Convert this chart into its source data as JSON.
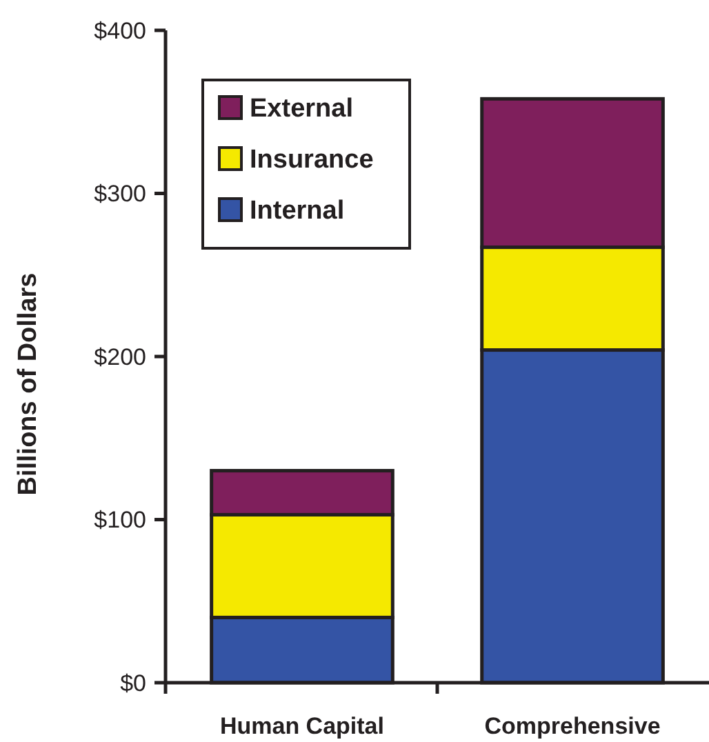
{
  "chart_data": {
    "type": "bar",
    "stacked": true,
    "ylabel": "Billions of Dollars",
    "categories": [
      "Human Capital",
      "Comprehensive"
    ],
    "series": [
      {
        "name": "Internal",
        "color": "#3454a5",
        "values": [
          40,
          204
        ]
      },
      {
        "name": "Insurance",
        "color": "#f5e900",
        "values": [
          63,
          63
        ]
      },
      {
        "name": "External",
        "color": "#7f1f5c",
        "values": [
          27,
          91
        ]
      }
    ],
    "ylim": [
      0,
      400
    ],
    "yticks": [
      {
        "value": 0,
        "label": "$0"
      },
      {
        "value": 100,
        "label": "$100"
      },
      {
        "value": 200,
        "label": "$200"
      },
      {
        "value": 300,
        "label": "$300"
      },
      {
        "value": 400,
        "label": "$400"
      }
    ],
    "grid": false,
    "legend": "top left"
  }
}
